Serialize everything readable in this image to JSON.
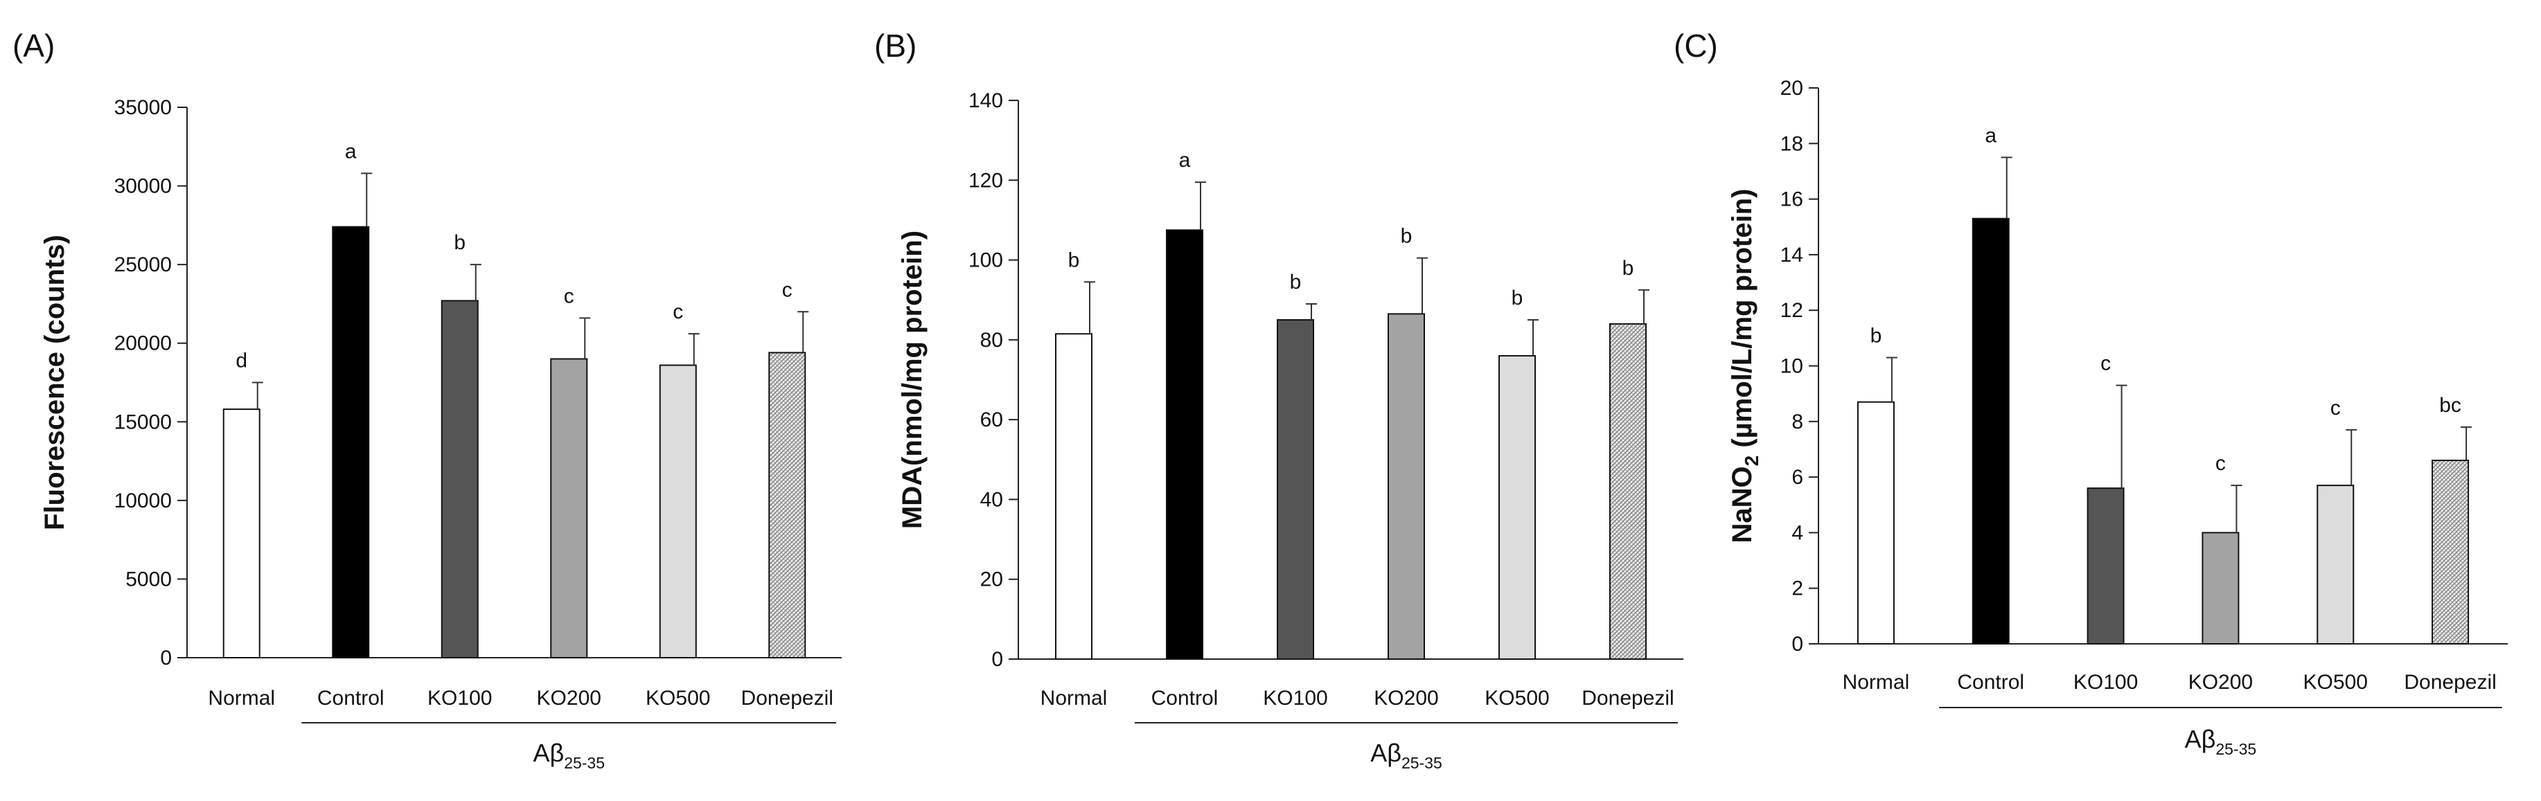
{
  "chart_data": [
    {
      "panel": "(A)",
      "type": "bar",
      "ylabel": "Fluorescence (counts)",
      "ylabel_parts": [],
      "categories": [
        "Normal",
        "Control",
        "KO100",
        "KO200",
        "KO500",
        "Donepezil"
      ],
      "values": [
        15800,
        27400,
        22700,
        19000,
        18600,
        19400
      ],
      "errors": [
        1700,
        3400,
        2300,
        2600,
        2000,
        2600
      ],
      "significance": [
        "d",
        "a",
        "b",
        "c",
        "c",
        "c"
      ],
      "ylim": [
        0,
        35000
      ],
      "yticks": [
        0,
        5000,
        10000,
        15000,
        20000,
        25000,
        30000,
        35000
      ],
      "group_label": {
        "main": "Aβ",
        "sub": "25-35"
      }
    },
    {
      "panel": "(B)",
      "type": "bar",
      "ylabel": "MDA(nmol/mg protein)",
      "ylabel_parts": [],
      "categories": [
        "Normal",
        "Control",
        "KO100",
        "KO200",
        "KO500",
        "Donepezil"
      ],
      "values": [
        81.5,
        107.5,
        85,
        86.5,
        76,
        84
      ],
      "errors": [
        13,
        12,
        4,
        14,
        9,
        8.5
      ],
      "significance": [
        "b",
        "a",
        "b",
        "b",
        "b",
        "b"
      ],
      "ylim": [
        0,
        140
      ],
      "yticks": [
        0,
        20,
        40,
        60,
        80,
        100,
        120,
        140
      ],
      "group_label": {
        "main": "Aβ",
        "sub": "25-35"
      }
    },
    {
      "panel": "(C)",
      "type": "bar",
      "ylabel": "",
      "ylabel_parts": [
        {
          "text": "NaNO"
        },
        {
          "text": "2",
          "sub": true
        },
        {
          "text": " (µmol/L/mg protein)"
        }
      ],
      "categories": [
        "Normal",
        "Control",
        "KO100",
        "KO200",
        "KO500",
        "Donepezil"
      ],
      "values": [
        8.7,
        15.3,
        5.6,
        4.0,
        5.7,
        6.6
      ],
      "errors": [
        1.6,
        2.2,
        3.7,
        1.7,
        2.0,
        1.2
      ],
      "significance": [
        "b",
        "a",
        "c",
        "c",
        "c",
        "bc"
      ],
      "ylim": [
        0,
        20
      ],
      "yticks": [
        0,
        2,
        4,
        6,
        8,
        10,
        12,
        14,
        16,
        18,
        20
      ],
      "group_label": {
        "main": "Aβ",
        "sub": "25-35"
      }
    }
  ],
  "bar_colors": [
    "#ffffff",
    "#000000",
    "#555555",
    "#a3a3a3",
    "#dcdcdc",
    "hatch"
  ]
}
